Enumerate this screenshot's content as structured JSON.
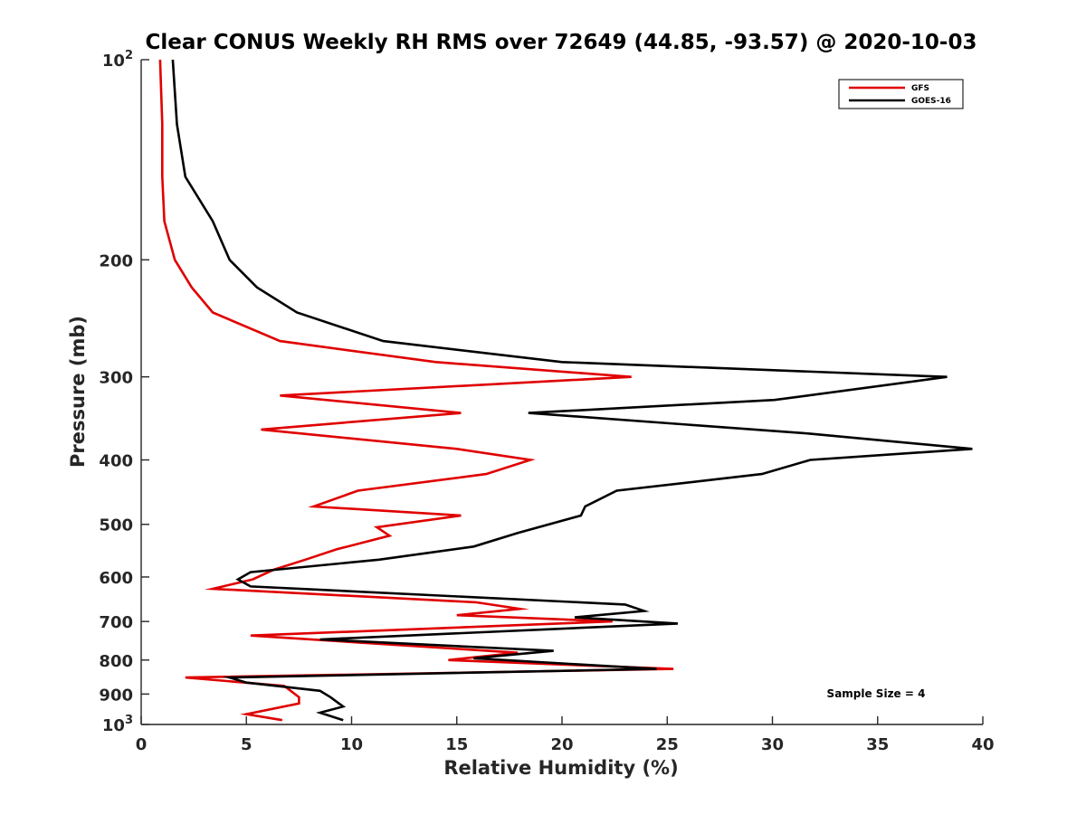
{
  "chart_data": {
    "type": "line",
    "title": "Clear CONUS Weekly RH RMS over 72649 (44.85, -93.57) @ 2020-10-03",
    "xlabel": "Relative Humidity (%)",
    "ylabel": "Pressure (mb)",
    "xlim": [
      0,
      40
    ],
    "ylim": [
      100,
      1000
    ],
    "yscale": "log",
    "yreversed": true,
    "grid": false,
    "legend_position": "top-right",
    "x_ticks": [
      0,
      5,
      10,
      15,
      20,
      25,
      30,
      35,
      40
    ],
    "y_ticks": [
      {
        "value": 100,
        "base": "10",
        "exp": "2"
      },
      {
        "value": 200,
        "label": "200"
      },
      {
        "value": 300,
        "label": "300"
      },
      {
        "value": 400,
        "label": "400"
      },
      {
        "value": 500,
        "label": "500"
      },
      {
        "value": 600,
        "label": "600"
      },
      {
        "value": 700,
        "label": "700"
      },
      {
        "value": 800,
        "label": "800"
      },
      {
        "value": 900,
        "label": "900"
      },
      {
        "value": 1000,
        "base": "10",
        "exp": "3"
      }
    ],
    "annotation": "Sample Size = 4",
    "series": [
      {
        "name": "GFS",
        "color": "#e00000",
        "points": [
          [
            0.9,
            100
          ],
          [
            1.0,
            125
          ],
          [
            1.0,
            150
          ],
          [
            1.1,
            175
          ],
          [
            1.6,
            200
          ],
          [
            2.4,
            220
          ],
          [
            3.4,
            240
          ],
          [
            6.6,
            265
          ],
          [
            14,
            285
          ],
          [
            23.3,
            300
          ],
          [
            6.6,
            320
          ],
          [
            15.2,
            340
          ],
          [
            5.7,
            360
          ],
          [
            15,
            385
          ],
          [
            18.5,
            400
          ],
          [
            16.4,
            420
          ],
          [
            10.3,
            445
          ],
          [
            8.2,
            470
          ],
          [
            15.2,
            485
          ],
          [
            11.2,
            505
          ],
          [
            11.8,
            520
          ],
          [
            9.3,
            545
          ],
          [
            7.8,
            565
          ],
          [
            6.3,
            585
          ],
          [
            5.3,
            605
          ],
          [
            3.4,
            625
          ],
          [
            15.9,
            655
          ],
          [
            18.0,
            670
          ],
          [
            15.0,
            685
          ],
          [
            22.4,
            700
          ],
          [
            5.2,
            735
          ],
          [
            17.9,
            780
          ],
          [
            14.6,
            800
          ],
          [
            25.3,
            825
          ],
          [
            2.1,
            850
          ],
          [
            6.8,
            875
          ],
          [
            7.5,
            910
          ],
          [
            7.5,
            930
          ],
          [
            5.0,
            965
          ],
          [
            6.7,
            985
          ]
        ]
      },
      {
        "name": "GOES-16",
        "color": "#000000",
        "points": [
          [
            1.5,
            100
          ],
          [
            1.7,
            125
          ],
          [
            2.1,
            150
          ],
          [
            3.4,
            175
          ],
          [
            4.2,
            200
          ],
          [
            5.5,
            220
          ],
          [
            7.4,
            240
          ],
          [
            11.5,
            265
          ],
          [
            20,
            285
          ],
          [
            38.3,
            300
          ],
          [
            30.1,
            325
          ],
          [
            18.4,
            340
          ],
          [
            31.7,
            365
          ],
          [
            39.5,
            385
          ],
          [
            31.8,
            400
          ],
          [
            29.5,
            420
          ],
          [
            22.6,
            445
          ],
          [
            21.1,
            470
          ],
          [
            20.9,
            485
          ],
          [
            17.9,
            515
          ],
          [
            15.8,
            540
          ],
          [
            11.3,
            565
          ],
          [
            5.2,
            590
          ],
          [
            4.6,
            605
          ],
          [
            5.2,
            620
          ],
          [
            23.0,
            660
          ],
          [
            23.9,
            675
          ],
          [
            20.6,
            690
          ],
          [
            25.5,
            705
          ],
          [
            8.5,
            745
          ],
          [
            19.6,
            775
          ],
          [
            15.8,
            795
          ],
          [
            24.5,
            825
          ],
          [
            4.2,
            850
          ],
          [
            5.0,
            865
          ],
          [
            8.5,
            890
          ],
          [
            9.0,
            910
          ],
          [
            9.6,
            940
          ],
          [
            8.5,
            960
          ],
          [
            9.6,
            985
          ]
        ]
      }
    ]
  }
}
